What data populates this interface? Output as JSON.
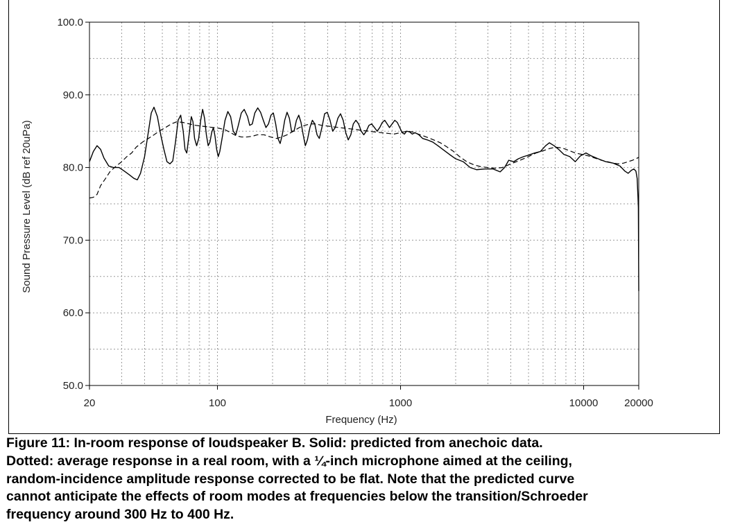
{
  "chart_data": {
    "type": "line",
    "title": "",
    "xlabel": "Frequency (Hz)",
    "ylabel": "Sound Pressure Level (dB ref 20uPa)",
    "xscale": "log",
    "xlim": [
      20,
      20000
    ],
    "ylim": [
      50,
      100
    ],
    "xticks": [
      {
        "value": 20,
        "label": "20"
      },
      {
        "value": 100,
        "label": "100"
      },
      {
        "value": 1000,
        "label": "1000"
      },
      {
        "value": 10000,
        "label": "10000"
      },
      {
        "value": 20000,
        "label": "20000"
      }
    ],
    "yticks": [
      {
        "value": 50,
        "label": "50.0"
      },
      {
        "value": 60,
        "label": "60.0"
      },
      {
        "value": 70,
        "label": "70.0"
      },
      {
        "value": 80,
        "label": "80.0"
      },
      {
        "value": 90,
        "label": "90.0"
      },
      {
        "value": 100,
        "label": "100.0"
      }
    ],
    "grid": true,
    "series": [
      {
        "name": "Solid: predicted from anechoic data",
        "style": "solid",
        "points": [
          [
            20,
            80.8
          ],
          [
            21,
            82.2
          ],
          [
            22,
            83.0
          ],
          [
            23,
            82.5
          ],
          [
            24,
            81.3
          ],
          [
            25.5,
            80.2
          ],
          [
            27,
            80.0
          ],
          [
            29,
            80.0
          ],
          [
            31,
            79.5
          ],
          [
            33,
            79.0
          ],
          [
            35,
            78.5
          ],
          [
            36.5,
            78.3
          ],
          [
            38,
            79.2
          ],
          [
            40,
            81.5
          ],
          [
            42,
            85.0
          ],
          [
            43.5,
            87.5
          ],
          [
            45,
            88.3
          ],
          [
            47,
            87.0
          ],
          [
            49,
            84.5
          ],
          [
            51,
            82.5
          ],
          [
            53,
            80.8
          ],
          [
            55,
            80.5
          ],
          [
            57,
            80.9
          ],
          [
            59,
            83.5
          ],
          [
            61,
            86.5
          ],
          [
            63,
            87.2
          ],
          [
            65,
            85.0
          ],
          [
            66.5,
            82.5
          ],
          [
            68,
            82.0
          ],
          [
            70,
            84.5
          ],
          [
            72,
            87.0
          ],
          [
            73.5,
            86.3
          ],
          [
            75,
            84.0
          ],
          [
            77,
            83.0
          ],
          [
            79,
            84.0
          ],
          [
            81,
            86.5
          ],
          [
            83,
            88.0
          ],
          [
            85,
            86.8
          ],
          [
            87,
            84.5
          ],
          [
            89,
            83.0
          ],
          [
            91,
            83.5
          ],
          [
            93,
            84.8
          ],
          [
            95,
            85.5
          ],
          [
            97,
            84.3
          ],
          [
            99,
            82.5
          ],
          [
            101,
            81.5
          ],
          [
            103,
            82.2
          ],
          [
            106,
            84.0
          ],
          [
            110,
            86.5
          ],
          [
            114,
            87.7
          ],
          [
            118,
            87.0
          ],
          [
            122,
            85.0
          ],
          [
            126,
            84.5
          ],
          [
            130,
            85.8
          ],
          [
            135,
            87.5
          ],
          [
            140,
            88.0
          ],
          [
            146,
            87.0
          ],
          [
            150,
            85.8
          ],
          [
            155,
            86.0
          ],
          [
            160,
            87.5
          ],
          [
            166,
            88.2
          ],
          [
            172,
            87.6
          ],
          [
            178,
            86.5
          ],
          [
            184,
            85.5
          ],
          [
            190,
            86.0
          ],
          [
            196,
            87.2
          ],
          [
            202,
            87.5
          ],
          [
            208,
            86.0
          ],
          [
            214,
            84.0
          ],
          [
            220,
            83.3
          ],
          [
            226,
            84.5
          ],
          [
            233,
            86.5
          ],
          [
            240,
            87.6
          ],
          [
            247,
            86.8
          ],
          [
            254,
            85.0
          ],
          [
            262,
            85.0
          ],
          [
            270,
            86.5
          ],
          [
            278,
            87.2
          ],
          [
            286,
            86.2
          ],
          [
            294,
            84.5
          ],
          [
            302,
            83.0
          ],
          [
            310,
            83.8
          ],
          [
            320,
            85.5
          ],
          [
            330,
            86.5
          ],
          [
            340,
            86.0
          ],
          [
            350,
            84.5
          ],
          [
            360,
            84.0
          ],
          [
            372,
            85.5
          ],
          [
            385,
            87.4
          ],
          [
            398,
            87.6
          ],
          [
            412,
            86.5
          ],
          [
            426,
            85.0
          ],
          [
            440,
            85.5
          ],
          [
            455,
            86.8
          ],
          [
            470,
            87.4
          ],
          [
            486,
            86.5
          ],
          [
            502,
            84.8
          ],
          [
            518,
            83.8
          ],
          [
            535,
            84.5
          ],
          [
            552,
            86.0
          ],
          [
            570,
            86.5
          ],
          [
            590,
            86.0
          ],
          [
            610,
            85.0
          ],
          [
            630,
            84.5
          ],
          [
            650,
            85.0
          ],
          [
            672,
            85.8
          ],
          [
            695,
            86.0
          ],
          [
            720,
            85.5
          ],
          [
            745,
            85.0
          ],
          [
            770,
            85.5
          ],
          [
            795,
            86.2
          ],
          [
            820,
            86.5
          ],
          [
            845,
            86.0
          ],
          [
            870,
            85.5
          ],
          [
            900,
            86.0
          ],
          [
            930,
            86.5
          ],
          [
            960,
            86.2
          ],
          [
            990,
            85.5
          ],
          [
            1020,
            84.8
          ],
          [
            1050,
            84.6
          ],
          [
            1080,
            85.0
          ],
          [
            1120,
            84.9
          ],
          [
            1160,
            84.6
          ],
          [
            1200,
            84.8
          ],
          [
            1260,
            84.5
          ],
          [
            1320,
            84.0
          ],
          [
            1400,
            83.8
          ],
          [
            1500,
            83.5
          ],
          [
            1600,
            83.0
          ],
          [
            1700,
            82.5
          ],
          [
            1850,
            81.8
          ],
          [
            2000,
            81.2
          ],
          [
            2200,
            80.8
          ],
          [
            2400,
            80.0
          ],
          [
            2600,
            79.7
          ],
          [
            2900,
            79.8
          ],
          [
            3200,
            79.8
          ],
          [
            3500,
            79.4
          ],
          [
            3700,
            80.0
          ],
          [
            3900,
            81.0
          ],
          [
            4150,
            80.8
          ],
          [
            4400,
            81.2
          ],
          [
            4700,
            81.5
          ],
          [
            5000,
            81.7
          ],
          [
            5400,
            82.0
          ],
          [
            5800,
            82.2
          ],
          [
            6200,
            83.0
          ],
          [
            6500,
            83.4
          ],
          [
            6900,
            83.0
          ],
          [
            7300,
            82.5
          ],
          [
            7800,
            81.8
          ],
          [
            8400,
            81.5
          ],
          [
            9000,
            80.8
          ],
          [
            9600,
            81.6
          ],
          [
            10300,
            82.0
          ],
          [
            11000,
            81.6
          ],
          [
            12000,
            81.2
          ],
          [
            13200,
            80.8
          ],
          [
            14500,
            80.6
          ],
          [
            15800,
            80.2
          ],
          [
            16800,
            79.5
          ],
          [
            17500,
            79.2
          ],
          [
            18200,
            79.6
          ],
          [
            18800,
            79.8
          ],
          [
            19300,
            79.5
          ],
          [
            19600,
            78.5
          ],
          [
            19800,
            76.0
          ],
          [
            19900,
            74.5
          ],
          [
            20000,
            63.0
          ]
        ]
      },
      {
        "name": "Dotted: average response in a real room",
        "style": "dashed",
        "points": [
          [
            20,
            75.8
          ],
          [
            21,
            75.9
          ],
          [
            22,
            76.3
          ],
          [
            23,
            77.5
          ],
          [
            24.5,
            78.5
          ],
          [
            26,
            79.5
          ],
          [
            28,
            80.2
          ],
          [
            30,
            80.8
          ],
          [
            32,
            81.5
          ],
          [
            34,
            82.0
          ],
          [
            36,
            82.8
          ],
          [
            39,
            83.5
          ],
          [
            42,
            84.0
          ],
          [
            45,
            84.5
          ],
          [
            48,
            85.0
          ],
          [
            52,
            85.5
          ],
          [
            56,
            86.0
          ],
          [
            60,
            86.3
          ],
          [
            65,
            86.2
          ],
          [
            70,
            86.0
          ],
          [
            76,
            85.8
          ],
          [
            82,
            85.7
          ],
          [
            88,
            85.6
          ],
          [
            95,
            85.5
          ],
          [
            102,
            85.4
          ],
          [
            110,
            85.2
          ],
          [
            118,
            84.8
          ],
          [
            126,
            84.4
          ],
          [
            135,
            84.2
          ],
          [
            145,
            84.2
          ],
          [
            155,
            84.3
          ],
          [
            165,
            84.5
          ],
          [
            180,
            84.5
          ],
          [
            195,
            84.2
          ],
          [
            210,
            84.0
          ],
          [
            225,
            84.2
          ],
          [
            240,
            84.5
          ],
          [
            260,
            85.0
          ],
          [
            280,
            85.5
          ],
          [
            300,
            85.8
          ],
          [
            320,
            86.0
          ],
          [
            345,
            86.0
          ],
          [
            370,
            85.8
          ],
          [
            400,
            85.7
          ],
          [
            430,
            85.6
          ],
          [
            460,
            85.5
          ],
          [
            500,
            85.4
          ],
          [
            540,
            85.3
          ],
          [
            580,
            85.2
          ],
          [
            620,
            85.1
          ],
          [
            670,
            85.0
          ],
          [
            720,
            84.9
          ],
          [
            780,
            84.8
          ],
          [
            850,
            84.7
          ],
          [
            920,
            84.6
          ],
          [
            1000,
            84.8
          ],
          [
            1080,
            85.0
          ],
          [
            1160,
            84.9
          ],
          [
            1250,
            84.6
          ],
          [
            1350,
            84.3
          ],
          [
            1450,
            84.0
          ],
          [
            1550,
            83.7
          ],
          [
            1650,
            83.4
          ],
          [
            1800,
            82.8
          ],
          [
            1950,
            82.2
          ],
          [
            2100,
            81.5
          ],
          [
            2300,
            80.8
          ],
          [
            2500,
            80.4
          ],
          [
            2750,
            80.1
          ],
          [
            3000,
            80.0
          ],
          [
            3300,
            79.9
          ],
          [
            3600,
            80.0
          ],
          [
            4000,
            80.5
          ],
          [
            4500,
            81.0
          ],
          [
            5000,
            81.5
          ],
          [
            5500,
            82.0
          ],
          [
            6000,
            82.3
          ],
          [
            6500,
            82.6
          ],
          [
            7000,
            82.8
          ],
          [
            7600,
            82.7
          ],
          [
            8200,
            82.4
          ],
          [
            9000,
            82.0
          ],
          [
            9800,
            81.8
          ],
          [
            10600,
            81.6
          ],
          [
            11500,
            81.3
          ],
          [
            12500,
            81.0
          ],
          [
            13500,
            80.8
          ],
          [
            14500,
            80.6
          ],
          [
            15500,
            80.5
          ],
          [
            16500,
            80.6
          ],
          [
            17500,
            80.8
          ],
          [
            18500,
            81.0
          ],
          [
            19300,
            81.2
          ],
          [
            20000,
            81.4
          ]
        ]
      }
    ]
  },
  "caption": {
    "line1": "Figure 11:  In-room response of loudspeaker B. Solid: predicted from anechoic data.",
    "line2": "Dotted: average response in a real room, with a ¼-inch microphone aimed at the ceiling,",
    "line3": "random-incidence amplitude response corrected to be flat.  Note that the predicted curve",
    "line4": "cannot anticipate the effects of room modes at frequencies below the transition/Schroeder",
    "line5": "frequency around 300 Hz to 400 Hz."
  }
}
